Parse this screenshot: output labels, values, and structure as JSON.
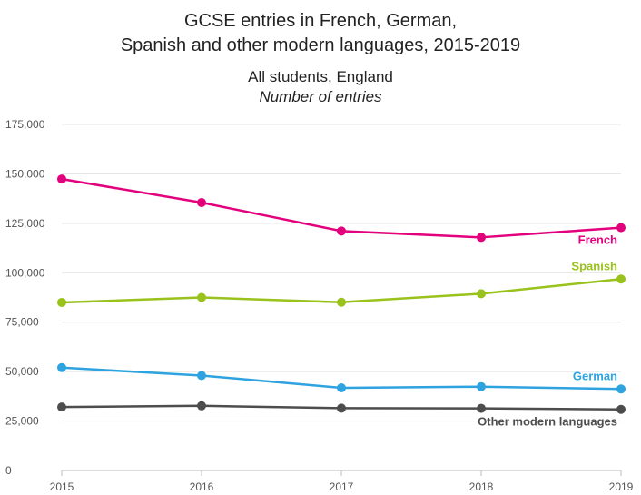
{
  "chart_title_line1": "GCSE entries in French, German,",
  "chart_title_line2": "Spanish and other modern languages, 2015-2019",
  "subtitle": "All students, England",
  "unit": "Number of entries",
  "chart_data": {
    "type": "line",
    "title": "GCSE entries in French, German, Spanish and other modern languages, 2015-2019",
    "subtitle": "All students, England",
    "ylabel": "Number of entries",
    "x": [
      "2015",
      "2016",
      "2017",
      "2018",
      "2019"
    ],
    "ylim": [
      0,
      175000
    ],
    "yticks": [
      0,
      25000,
      50000,
      75000,
      100000,
      125000,
      150000,
      175000
    ],
    "ytick_labels": [
      "0",
      "25,000",
      "50,000",
      "75,000",
      "100,000",
      "125,000",
      "150,000",
      "175,000"
    ],
    "grid": true,
    "series": [
      {
        "name": "French",
        "values": [
          147400,
          135500,
          121100,
          117900,
          122800
        ],
        "color": "#e3007d"
      },
      {
        "name": "Spanish",
        "values": [
          85000,
          87500,
          85100,
          89400,
          96800
        ],
        "color": "#99c21c"
      },
      {
        "name": "German",
        "values": [
          52000,
          48000,
          41800,
          42400,
          41200
        ],
        "color": "#2ea3e0"
      },
      {
        "name": "Other modern languages",
        "values": [
          32100,
          32700,
          31500,
          31400,
          30900
        ],
        "color": "#4d4d4d"
      }
    ]
  }
}
